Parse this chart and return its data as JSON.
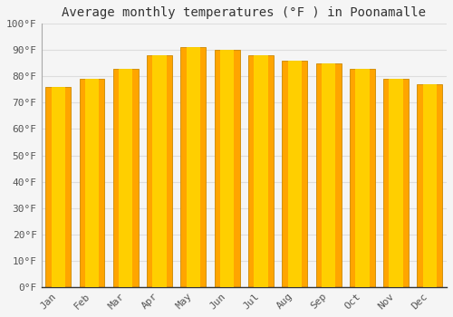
{
  "title": "Average monthly temperatures (°F ) in Poonamalle",
  "months": [
    "Jan",
    "Feb",
    "Mar",
    "Apr",
    "May",
    "Jun",
    "Jul",
    "Aug",
    "Sep",
    "Oct",
    "Nov",
    "Dec"
  ],
  "values": [
    76,
    79,
    83,
    88,
    91,
    90,
    88,
    86,
    85,
    83,
    79,
    77
  ],
  "bar_color_center": "#FFD966",
  "bar_color_edge": "#F0A500",
  "bar_gradient_left": "#F5A623",
  "bar_gradient_center": "#FFD000",
  "background_color": "#F5F5F5",
  "grid_color": "#DDDDDD",
  "ylim": [
    0,
    100
  ],
  "yticks": [
    0,
    10,
    20,
    30,
    40,
    50,
    60,
    70,
    80,
    90,
    100
  ],
  "title_fontsize": 10,
  "tick_fontsize": 8,
  "font_family": "monospace",
  "bar_width": 0.75,
  "bar_main_color": "#FFA500",
  "bar_highlight_color": "#FFD700"
}
